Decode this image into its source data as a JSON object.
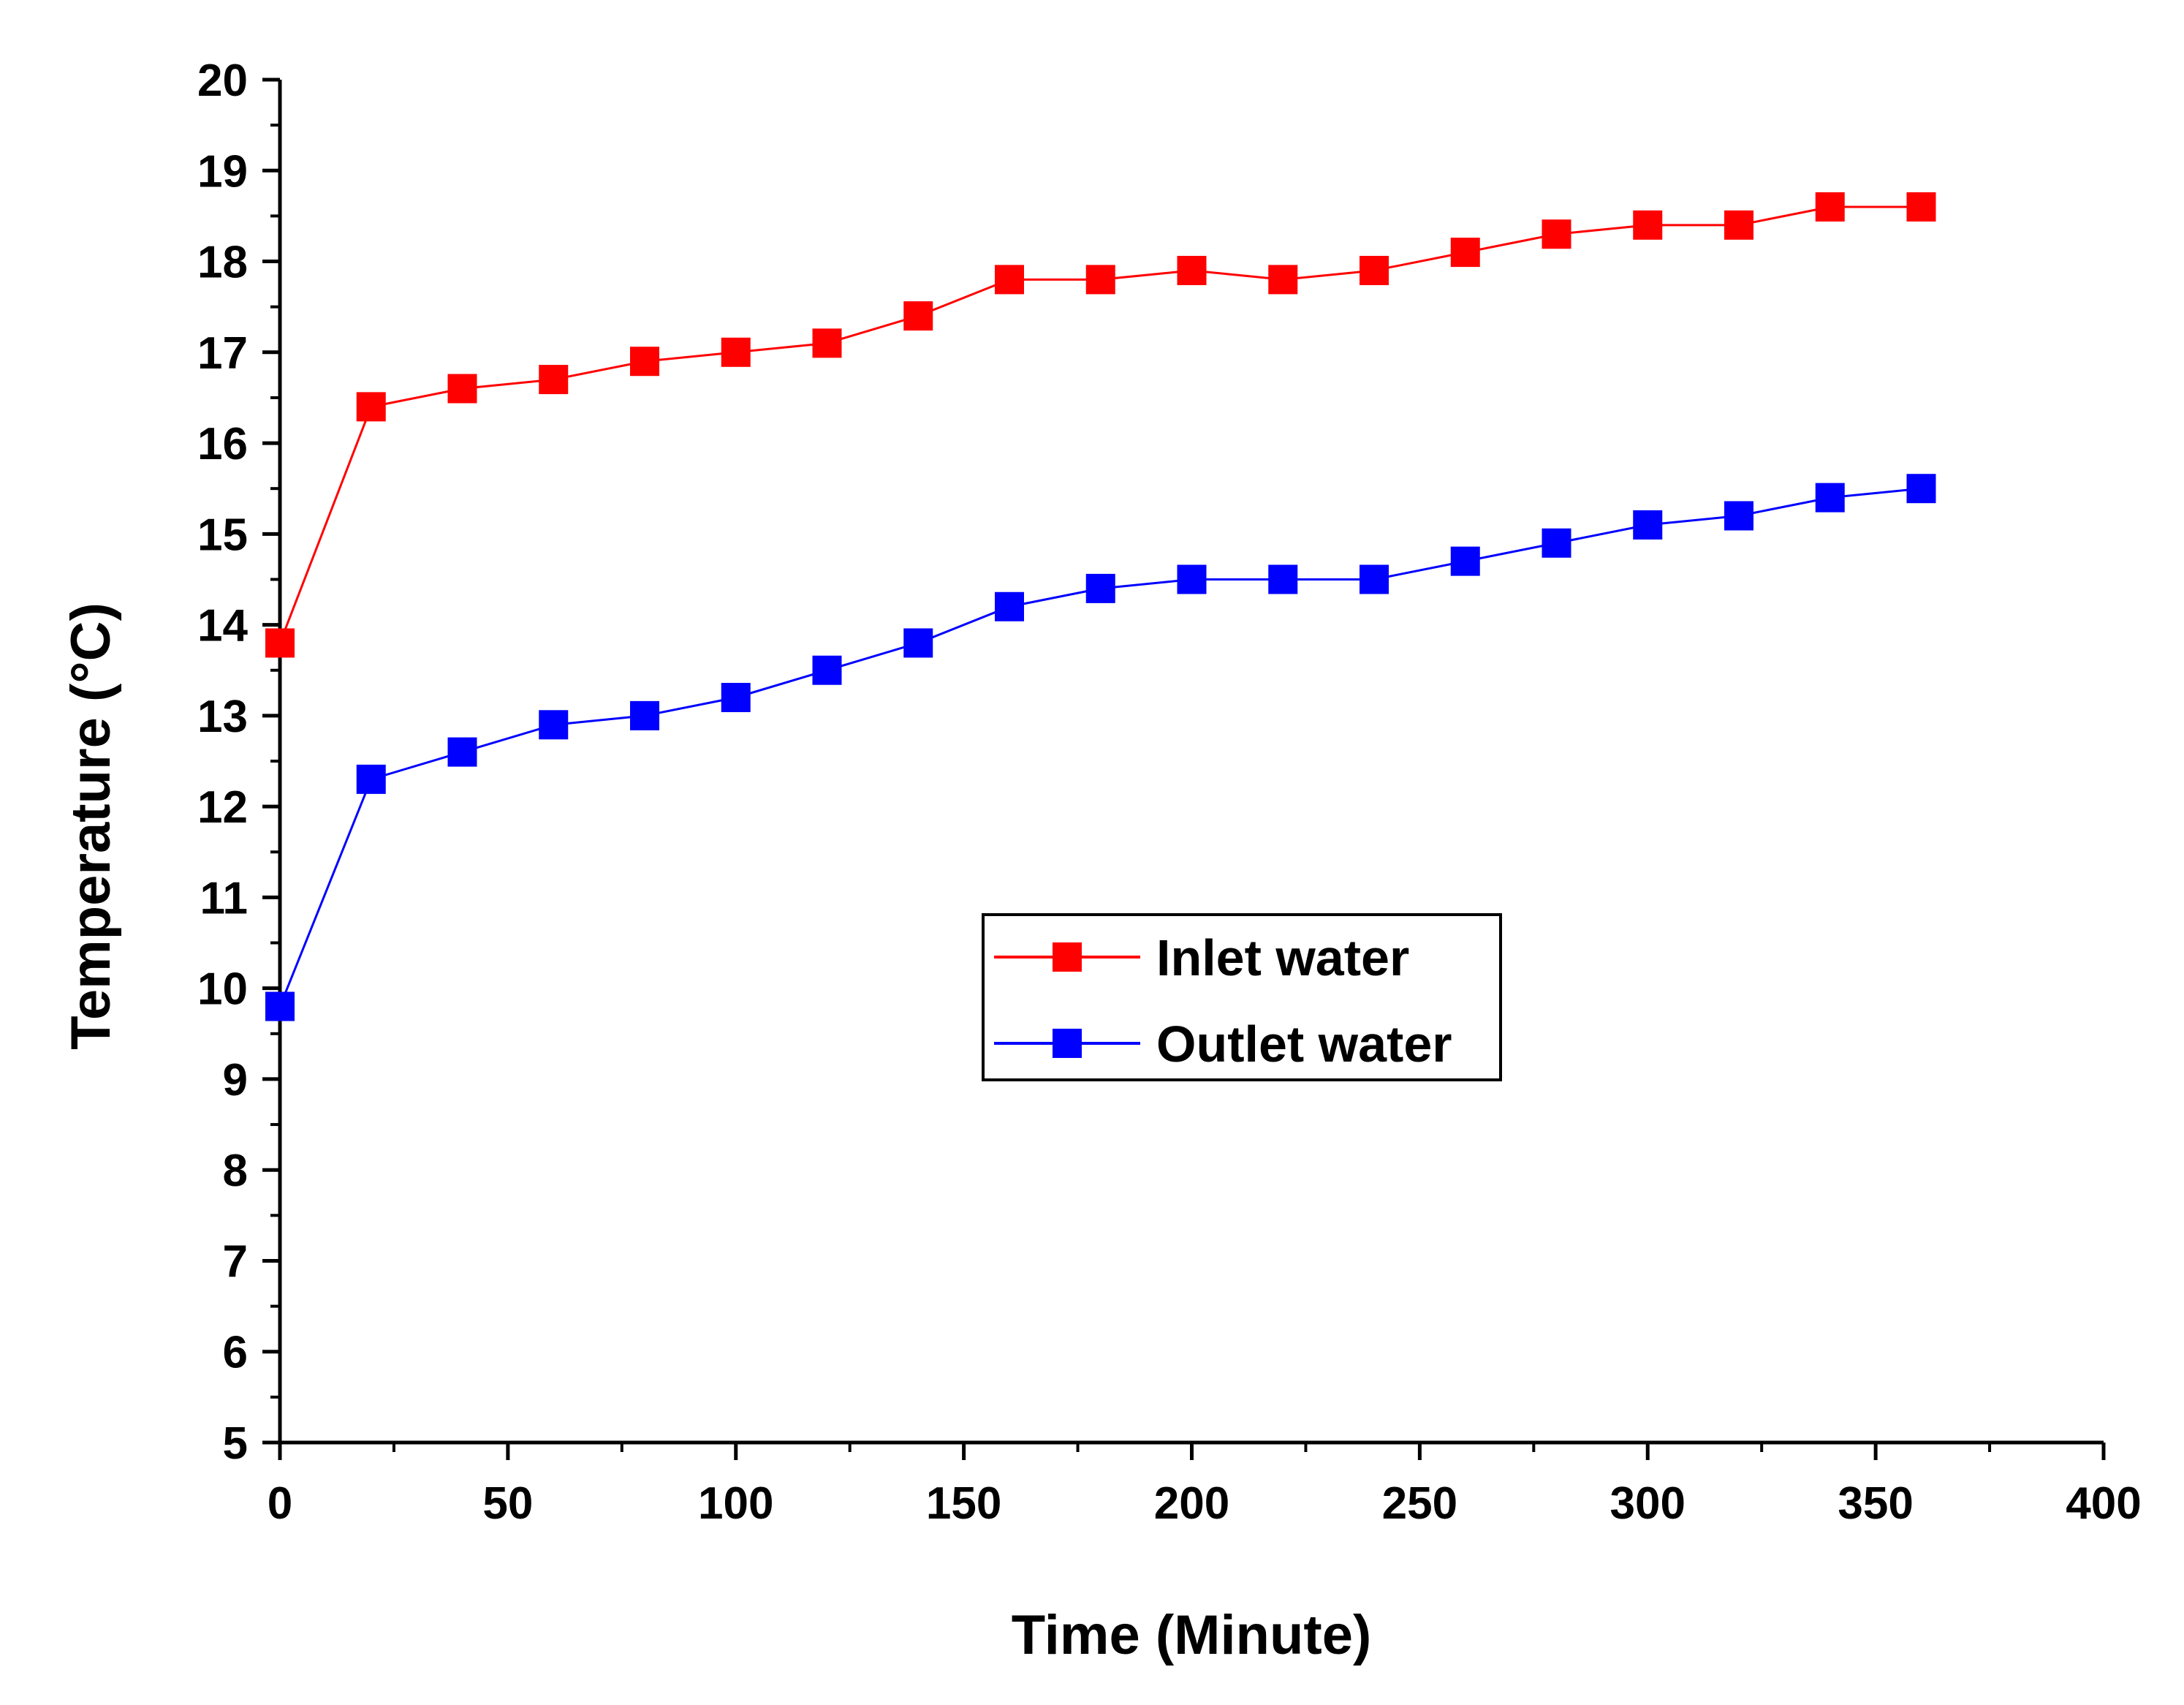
{
  "chart_data": {
    "type": "line",
    "xlabel": "Time (Minute)",
    "ylabel": "Temperature (°C)",
    "xlim": [
      0,
      400
    ],
    "ylim": [
      5,
      20
    ],
    "xticks": [
      0,
      50,
      100,
      150,
      200,
      250,
      300,
      350,
      400
    ],
    "yticks": [
      5,
      6,
      7,
      8,
      9,
      10,
      11,
      12,
      13,
      14,
      15,
      16,
      17,
      18,
      19,
      20
    ],
    "grid": false,
    "legend_position": "center-right",
    "x": [
      0,
      20,
      40,
      60,
      80,
      100,
      120,
      140,
      160,
      180,
      200,
      220,
      240,
      260,
      280,
      300,
      320,
      340,
      360
    ],
    "series": [
      {
        "name": "Inlet water",
        "color": "#ff0000",
        "marker": "square",
        "values": [
          13.8,
          16.4,
          16.6,
          16.7,
          16.9,
          17.0,
          17.1,
          17.4,
          17.8,
          17.8,
          17.9,
          17.8,
          17.9,
          18.1,
          18.3,
          18.4,
          18.4,
          18.6,
          18.6
        ]
      },
      {
        "name": "Outlet water",
        "color": "#0000ff",
        "marker": "square",
        "values": [
          9.8,
          12.3,
          12.6,
          12.9,
          13.0,
          13.2,
          13.5,
          13.8,
          14.2,
          14.4,
          14.5,
          14.5,
          14.5,
          14.7,
          14.9,
          15.1,
          15.2,
          15.4,
          15.5
        ]
      }
    ]
  }
}
